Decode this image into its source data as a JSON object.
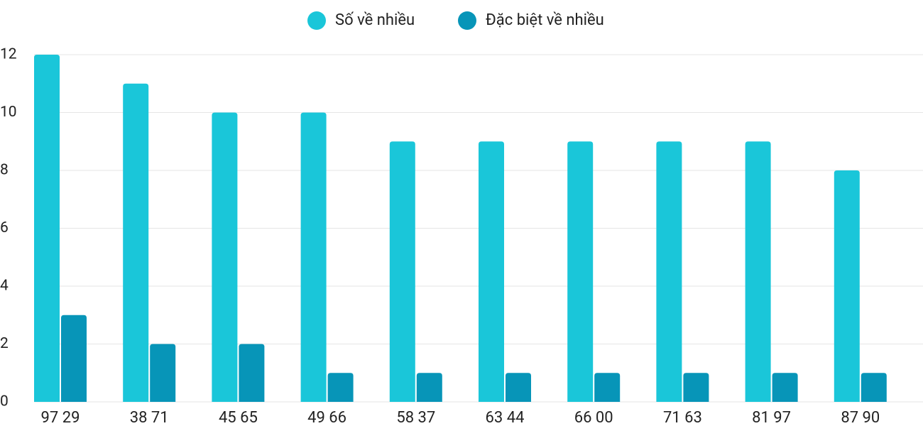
{
  "chart_data": {
    "type": "bar",
    "categories": [
      "97 29",
      "38 71",
      "45 65",
      "49 66",
      "58 37",
      "63 44",
      "66 00",
      "71 63",
      "81 97",
      "87 90"
    ],
    "series": [
      {
        "name": "Số về nhiều",
        "color": "#1ac6d9",
        "values": [
          12,
          11,
          10,
          10,
          9,
          9,
          9,
          9,
          9,
          8
        ]
      },
      {
        "name": "Đặc biệt về nhiều",
        "color": "#0795b8",
        "values": [
          3,
          2,
          2,
          1,
          1,
          1,
          1,
          1,
          1,
          1
        ]
      }
    ],
    "ylim": [
      0,
      12
    ],
    "yticks": [
      0,
      2,
      4,
      6,
      8,
      10,
      12
    ],
    "grid": true,
    "legend": "top"
  }
}
